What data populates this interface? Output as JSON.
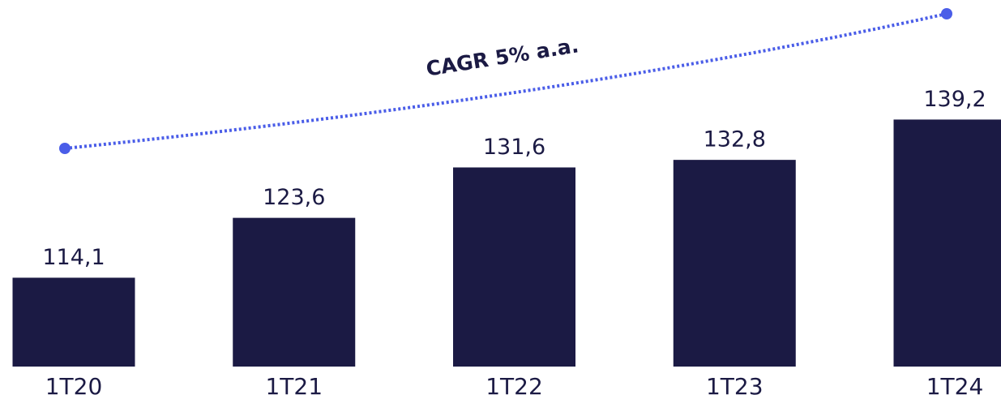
{
  "chart_data": {
    "type": "bar",
    "categories": [
      "1T20",
      "1T21",
      "1T22",
      "1T23",
      "1T24"
    ],
    "values": [
      114.1,
      123.6,
      131.6,
      132.8,
      139.2
    ],
    "value_labels": [
      "114,1",
      "123,6",
      "131,6",
      "132,8",
      "139,2"
    ],
    "color": "#1b1a44",
    "ylim": [
      100,
      150
    ],
    "annotation": "CAGR 5% a.a."
  }
}
